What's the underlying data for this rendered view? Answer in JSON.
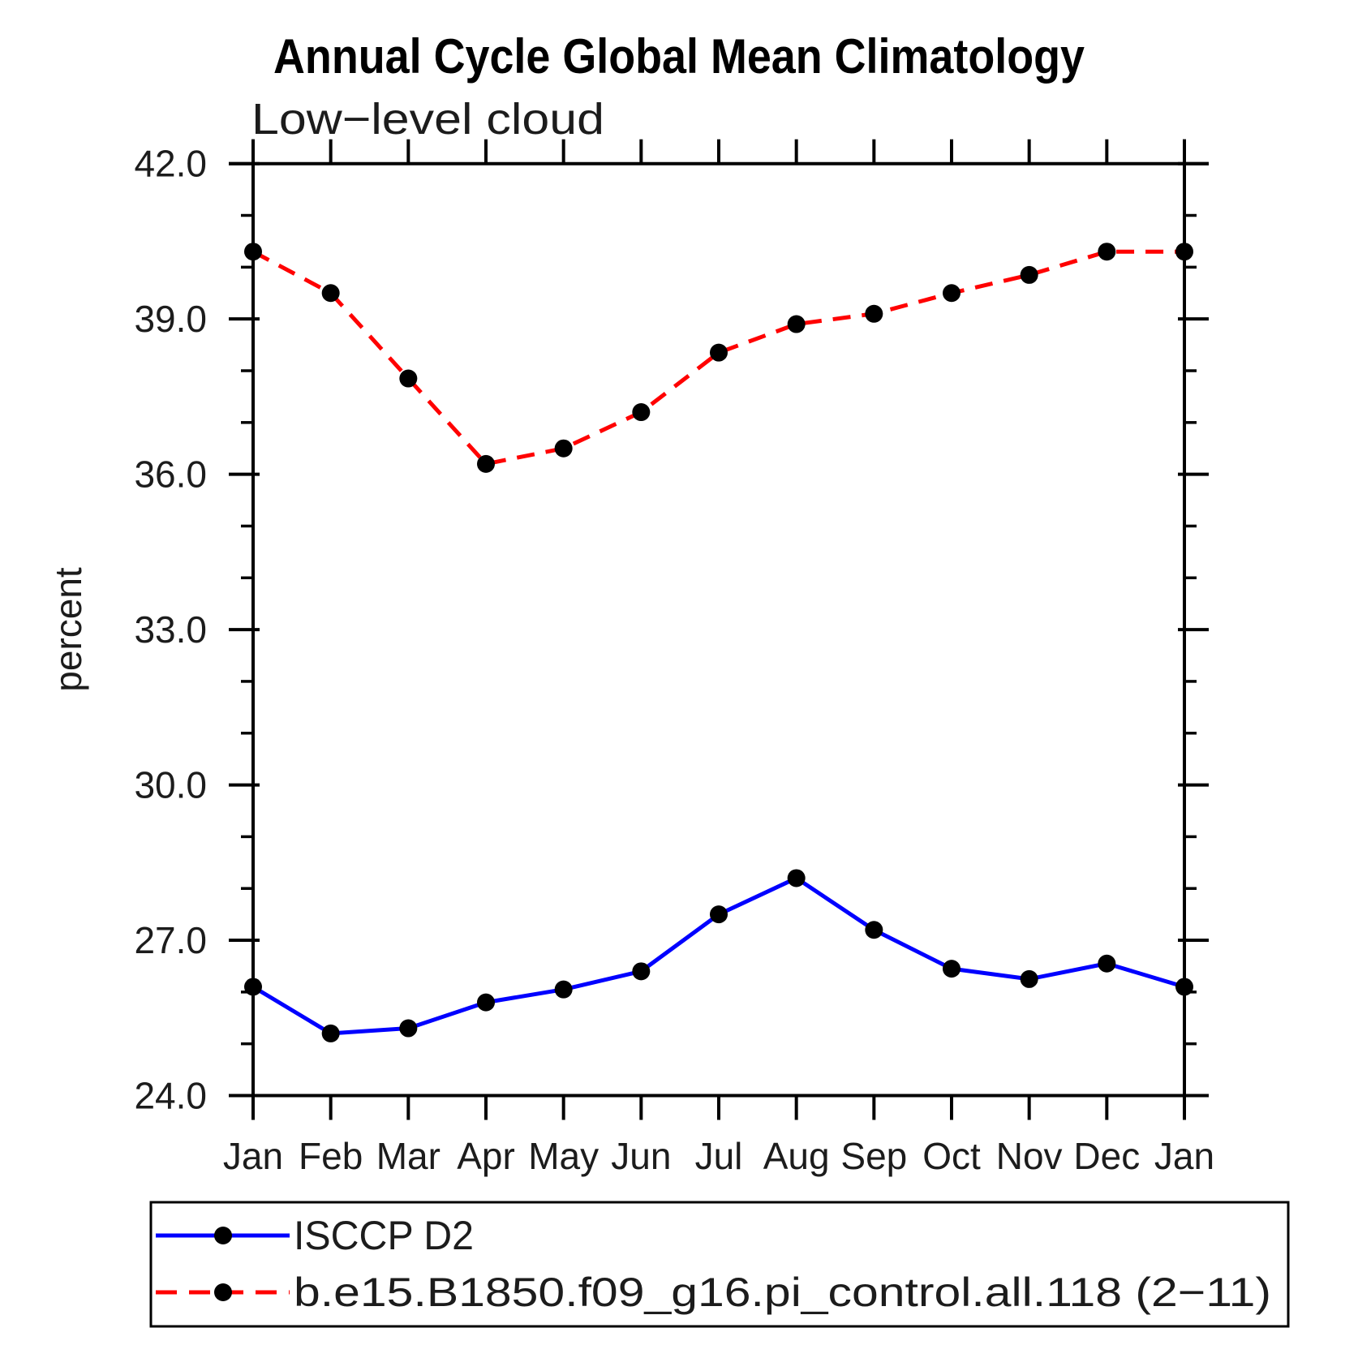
{
  "title": "Annual Cycle Global Mean Climatology",
  "subtitle": "Low−level cloud",
  "chart_data": {
    "type": "line",
    "title": "Annual Cycle Global Mean Climatology",
    "subtitle": "Low−level cloud",
    "xlabel": "",
    "ylabel": "percent",
    "ylim": [
      24.0,
      42.0
    ],
    "y_major_ticks": [
      42.0,
      39.0,
      36.0,
      33.0,
      30.0,
      27.0,
      24.0
    ],
    "y_tick_labels": [
      "42.0",
      "39.0",
      "36.0",
      "33.0",
      "30.0",
      "27.0",
      "24.0"
    ],
    "y_minor_step": 1.0,
    "grid": "off",
    "legend_position": "bottom",
    "categories": [
      "Jan",
      "Feb",
      "Mar",
      "Apr",
      "May",
      "Jun",
      "Jul",
      "Aug",
      "Sep",
      "Oct",
      "Nov",
      "Dec",
      "Jan"
    ],
    "series": [
      {
        "name": "ISCCP D2",
        "color": "#0000ff",
        "line_style": "solid",
        "marker": "filled-circle",
        "marker_color": "#000000",
        "values": [
          26.1,
          25.2,
          25.3,
          25.8,
          26.05,
          26.4,
          27.5,
          28.2,
          27.2,
          26.45,
          26.25,
          26.55,
          26.1
        ]
      },
      {
        "name": "b.e15.B1850.f09_g16.pi_control.all.118 (2−11)",
        "color": "#ff0000",
        "line_style": "dashed",
        "marker": "filled-circle",
        "marker_color": "#000000",
        "values": [
          40.3,
          39.5,
          37.85,
          36.2,
          36.5,
          37.2,
          38.35,
          38.9,
          39.1,
          39.5,
          39.85,
          40.3,
          40.3
        ]
      }
    ],
    "axis_color": "#000000"
  }
}
